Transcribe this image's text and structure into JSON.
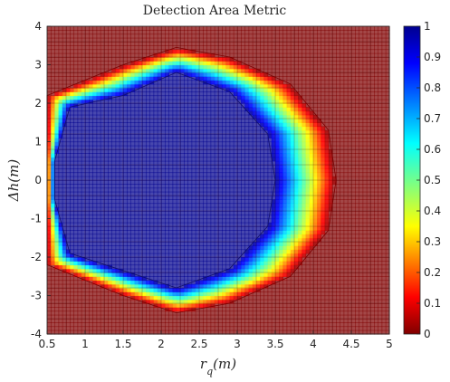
{
  "chart_data": {
    "type": "heatmap",
    "title": "Detection Area Metric",
    "xlabel": "r_q(m)",
    "ylabel": "Δh(m)",
    "xlim": [
      0.5,
      5
    ],
    "ylim": [
      -4,
      4
    ],
    "x_ticks": [
      "0.5",
      "1",
      "1.5",
      "2",
      "2.5",
      "3",
      "3.5",
      "4",
      "4.5",
      "5"
    ],
    "y_ticks": [
      "-4",
      "-3",
      "-2",
      "-1",
      "0",
      "1",
      "2",
      "3",
      "4"
    ],
    "colorbar": {
      "colormap": "jet",
      "range": [
        0,
        1
      ],
      "ticks": [
        "0",
        "0.1",
        "0.2",
        "0.3",
        "0.4",
        "0.5",
        "0.6",
        "0.7",
        "0.8",
        "0.9",
        "1"
      ]
    },
    "grid": {
      "x": [
        0.5,
        0.75,
        1.0,
        1.25,
        1.5,
        1.75,
        2.0,
        2.25,
        2.5,
        2.75,
        3.0,
        3.25,
        3.5,
        3.75,
        4.0,
        4.25,
        4.5,
        4.75,
        5.0
      ],
      "y": [
        -4.0,
        -3.6,
        -3.2,
        -2.8,
        -2.4,
        -2.0,
        -1.6,
        -1.2,
        -0.8,
        -0.4,
        0.0,
        0.4,
        0.8,
        1.2,
        1.6,
        2.0,
        2.4,
        2.8,
        3.2,
        3.6,
        4.0
      ]
    },
    "region_description": {
      "full_detection_boundary": [
        [
          0.8,
          -1.9
        ],
        [
          2.2,
          -2.8
        ],
        [
          2.9,
          -2.3
        ],
        [
          3.4,
          -1.2
        ],
        [
          3.5,
          0
        ],
        [
          3.4,
          1.2
        ],
        [
          2.9,
          2.3
        ],
        [
          2.2,
          2.8
        ],
        [
          1.5,
          2.2
        ],
        [
          0.8,
          1.9
        ],
        [
          0.6,
          0.5
        ],
        [
          0.6,
          -0.5
        ]
      ],
      "zero_detection_boundary": [
        [
          0.5,
          -2.2
        ],
        [
          1.5,
          -3.0
        ],
        [
          2.2,
          -3.45
        ],
        [
          2.9,
          -3.2
        ],
        [
          3.7,
          -2.5
        ],
        [
          4.2,
          -1.3
        ],
        [
          4.3,
          0
        ],
        [
          4.2,
          1.3
        ],
        [
          3.7,
          2.5
        ],
        [
          2.9,
          3.2
        ],
        [
          2.2,
          3.45
        ],
        [
          1.5,
          3.0
        ],
        [
          0.5,
          2.2
        ]
      ]
    }
  }
}
